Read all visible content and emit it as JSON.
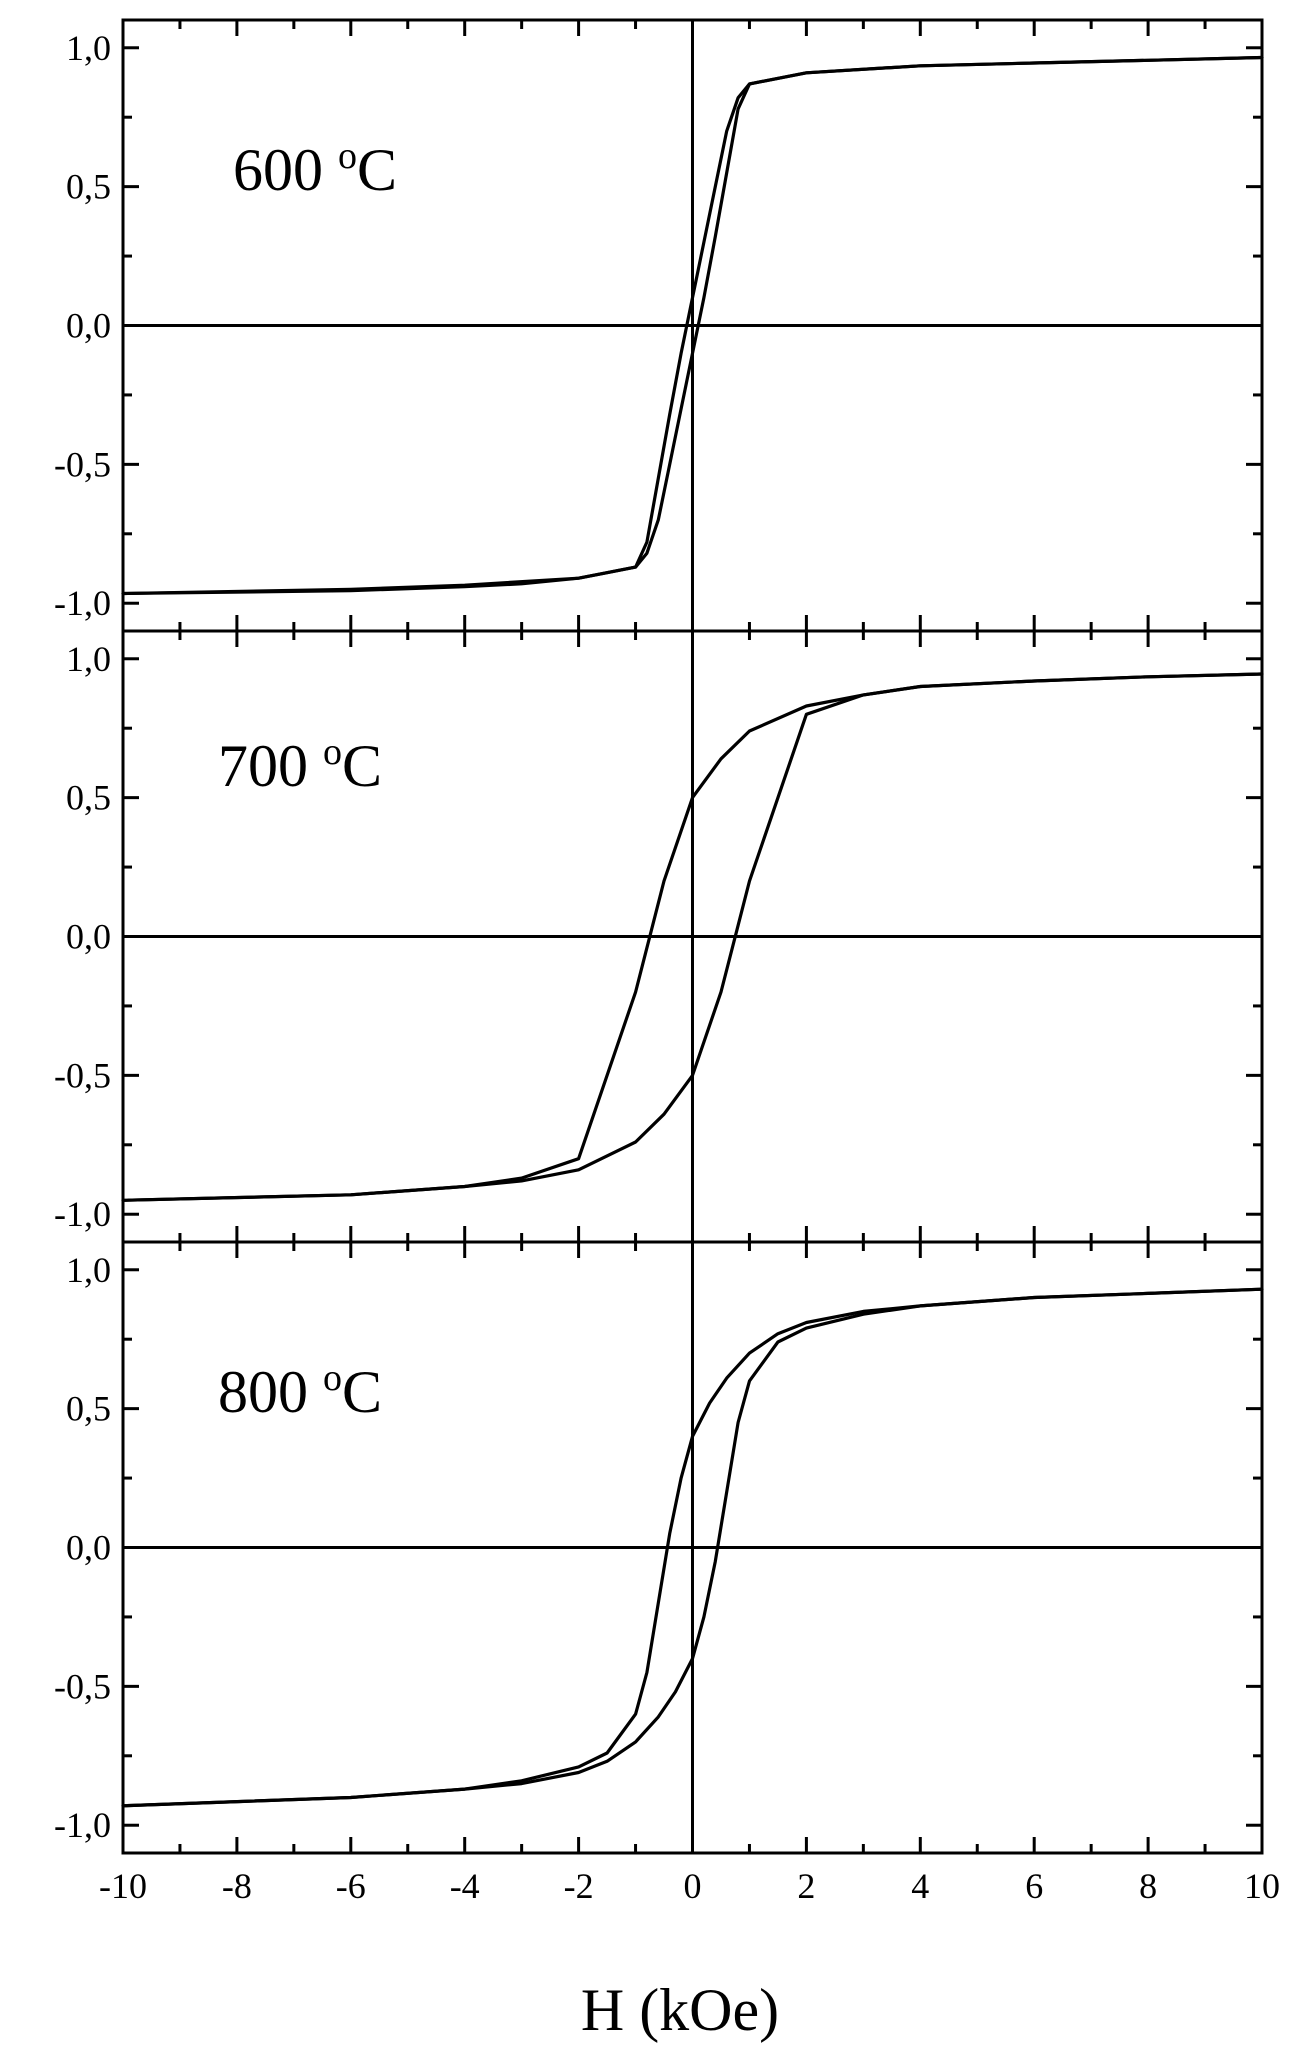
{
  "colors": {
    "background": "#ffffff",
    "ink": "#000000"
  },
  "x_axis": {
    "title": "H (kOe)",
    "tick_labels": [
      "-10",
      "-8",
      "-6",
      "-4",
      "-2",
      "0",
      "2",
      "4",
      "6",
      "8",
      "10"
    ]
  },
  "y_axis": {
    "tick_labels": [
      "-1,0",
      "-0,5",
      "0,0",
      "0,5",
      "1,0"
    ]
  },
  "chart_data": [
    {
      "type": "line",
      "panel_label": "600",
      "panel_label_unit": "oC",
      "xlim": [
        -10,
        10
      ],
      "ylim": [
        -1.1,
        1.1
      ],
      "x_ticks": [
        -10,
        -8,
        -6,
        -4,
        -2,
        0,
        2,
        4,
        6,
        8,
        10
      ],
      "y_ticks": [
        -1.0,
        -0.5,
        0.0,
        0.5,
        1.0
      ],
      "reference_lines": {
        "x": 0,
        "y": 0
      },
      "series": [
        {
          "x": [
            -10,
            -6,
            -4,
            -3,
            -2,
            -1.5,
            -1,
            -0.8,
            -0.6,
            -0.4,
            -0.2,
            0,
            0.2,
            0.4,
            0.6,
            0.8,
            1,
            2,
            4,
            6,
            8,
            10
          ],
          "y": [
            -0.965,
            -0.955,
            -0.94,
            -0.93,
            -0.91,
            -0.89,
            -0.87,
            -0.82,
            -0.7,
            -0.5,
            -0.3,
            -0.1,
            0.1,
            0.32,
            0.55,
            0.78,
            0.87,
            0.91,
            0.935,
            0.945,
            0.955,
            0.965
          ]
        },
        {
          "x": [
            10,
            8,
            6,
            4,
            2,
            1,
            0.8,
            0.6,
            0.4,
            0.2,
            0,
            -0.2,
            -0.4,
            -0.6,
            -0.8,
            -1,
            -2,
            -4,
            -6,
            -10
          ],
          "y": [
            0.965,
            0.955,
            0.945,
            0.935,
            0.91,
            0.87,
            0.82,
            0.7,
            0.5,
            0.3,
            0.1,
            -0.1,
            -0.32,
            -0.55,
            -0.78,
            -0.87,
            -0.91,
            -0.935,
            -0.95,
            -0.965
          ]
        }
      ]
    },
    {
      "type": "line",
      "panel_label": "700",
      "panel_label_unit": "oC",
      "xlim": [
        -10,
        10
      ],
      "ylim": [
        -1.1,
        1.1
      ],
      "x_ticks": [
        -10,
        -8,
        -6,
        -4,
        -2,
        0,
        2,
        4,
        6,
        8,
        10
      ],
      "y_ticks": [
        -1.0,
        -0.5,
        0.0,
        0.5,
        1.0
      ],
      "reference_lines": {
        "x": 0,
        "y": 0
      },
      "series": [
        {
          "x": [
            -10,
            -6,
            -4,
            -3,
            -2,
            -1,
            -0.5,
            0,
            0.5,
            1,
            2,
            3,
            4,
            6,
            8,
            10
          ],
          "y": [
            -0.95,
            -0.93,
            -0.9,
            -0.88,
            -0.84,
            -0.74,
            -0.64,
            -0.5,
            -0.2,
            0.2,
            0.8,
            0.87,
            0.9,
            0.92,
            0.935,
            0.945
          ]
        },
        {
          "x": [
            10,
            8,
            6,
            4,
            3,
            2,
            1,
            0.5,
            0,
            -0.5,
            -1,
            -2,
            -3,
            -4,
            -6,
            -10
          ],
          "y": [
            0.945,
            0.935,
            0.92,
            0.9,
            0.87,
            0.83,
            0.74,
            0.64,
            0.5,
            0.2,
            -0.2,
            -0.8,
            -0.87,
            -0.9,
            -0.93,
            -0.95
          ]
        }
      ]
    },
    {
      "type": "line",
      "panel_label": "800",
      "panel_label_unit": "oC",
      "xlim": [
        -10,
        10
      ],
      "ylim": [
        -1.1,
        1.1
      ],
      "x_ticks": [
        -10,
        -8,
        -6,
        -4,
        -2,
        0,
        2,
        4,
        6,
        8,
        10
      ],
      "y_ticks": [
        -1.0,
        -0.5,
        0.0,
        0.5,
        1.0
      ],
      "reference_lines": {
        "x": 0,
        "y": 0
      },
      "series": [
        {
          "x": [
            -10,
            -8,
            -6,
            -4,
            -3,
            -2,
            -1.5,
            -1,
            -0.6,
            -0.3,
            0,
            0.2,
            0.4,
            0.6,
            0.8,
            1,
            1.5,
            2,
            3,
            4,
            6,
            8,
            10
          ],
          "y": [
            -0.93,
            -0.915,
            -0.9,
            -0.87,
            -0.85,
            -0.81,
            -0.77,
            -0.7,
            -0.61,
            -0.52,
            -0.4,
            -0.25,
            -0.05,
            0.2,
            0.45,
            0.6,
            0.74,
            0.79,
            0.84,
            0.87,
            0.9,
            0.915,
            0.93
          ]
        },
        {
          "x": [
            10,
            8,
            6,
            4,
            3,
            2,
            1.5,
            1,
            0.6,
            0.3,
            0,
            -0.2,
            -0.4,
            -0.6,
            -0.8,
            -1,
            -1.5,
            -2,
            -3,
            -4,
            -6,
            -10
          ],
          "y": [
            0.93,
            0.915,
            0.9,
            0.87,
            0.85,
            0.81,
            0.77,
            0.7,
            0.61,
            0.52,
            0.4,
            0.25,
            0.05,
            -0.2,
            -0.45,
            -0.6,
            -0.74,
            -0.79,
            -0.84,
            -0.87,
            -0.9,
            -0.93
          ]
        }
      ]
    }
  ]
}
